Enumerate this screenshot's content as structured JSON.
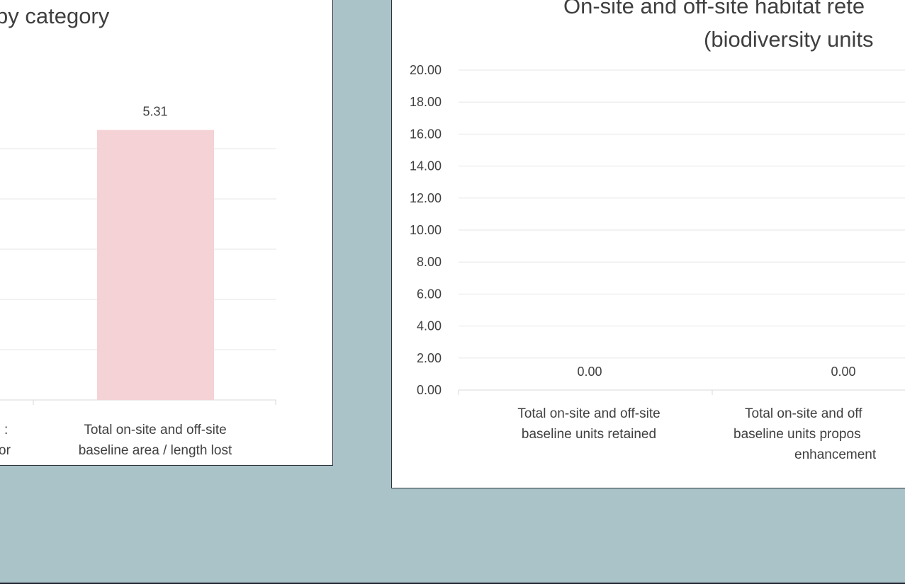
{
  "colors": {
    "background": "#aac3c8",
    "panel": "#ffffff",
    "gridline": "#e6e6e6",
    "bar_pink": "#f4d2d5",
    "text": "#404040"
  },
  "chart_data": [
    {
      "type": "bar",
      "title": "by category",
      "categories": [
        [
          "",
          ""
        ],
        [
          "Total on-site and off-site",
          "baseline area / length lost"
        ]
      ],
      "partial_label_fragments": [
        ":",
        "or"
      ],
      "values": [
        null,
        5.31
      ],
      "data_labels": [
        "",
        "5.31"
      ],
      "ylim": [
        0,
        5.5
      ],
      "grid": true,
      "legend": "none"
    },
    {
      "type": "bar",
      "title": "On-site and off-site habitat rete",
      "subtitle": "(biodiversity units",
      "categories": [
        [
          "Total on-site and off-site",
          "baseline units retained"
        ],
        [
          "Total on-site and off",
          "baseline units propos",
          "enhancement"
        ]
      ],
      "values": [
        0.0,
        0.0
      ],
      "data_labels": [
        "0.00",
        "0.00"
      ],
      "yticks": [
        "20.00",
        "18.00",
        "16.00",
        "14.00",
        "12.00",
        "10.00",
        "8.00",
        "6.00",
        "4.00",
        "2.00",
        "0.00"
      ],
      "ylim": [
        0,
        20
      ],
      "grid": true,
      "legend": "none"
    }
  ]
}
